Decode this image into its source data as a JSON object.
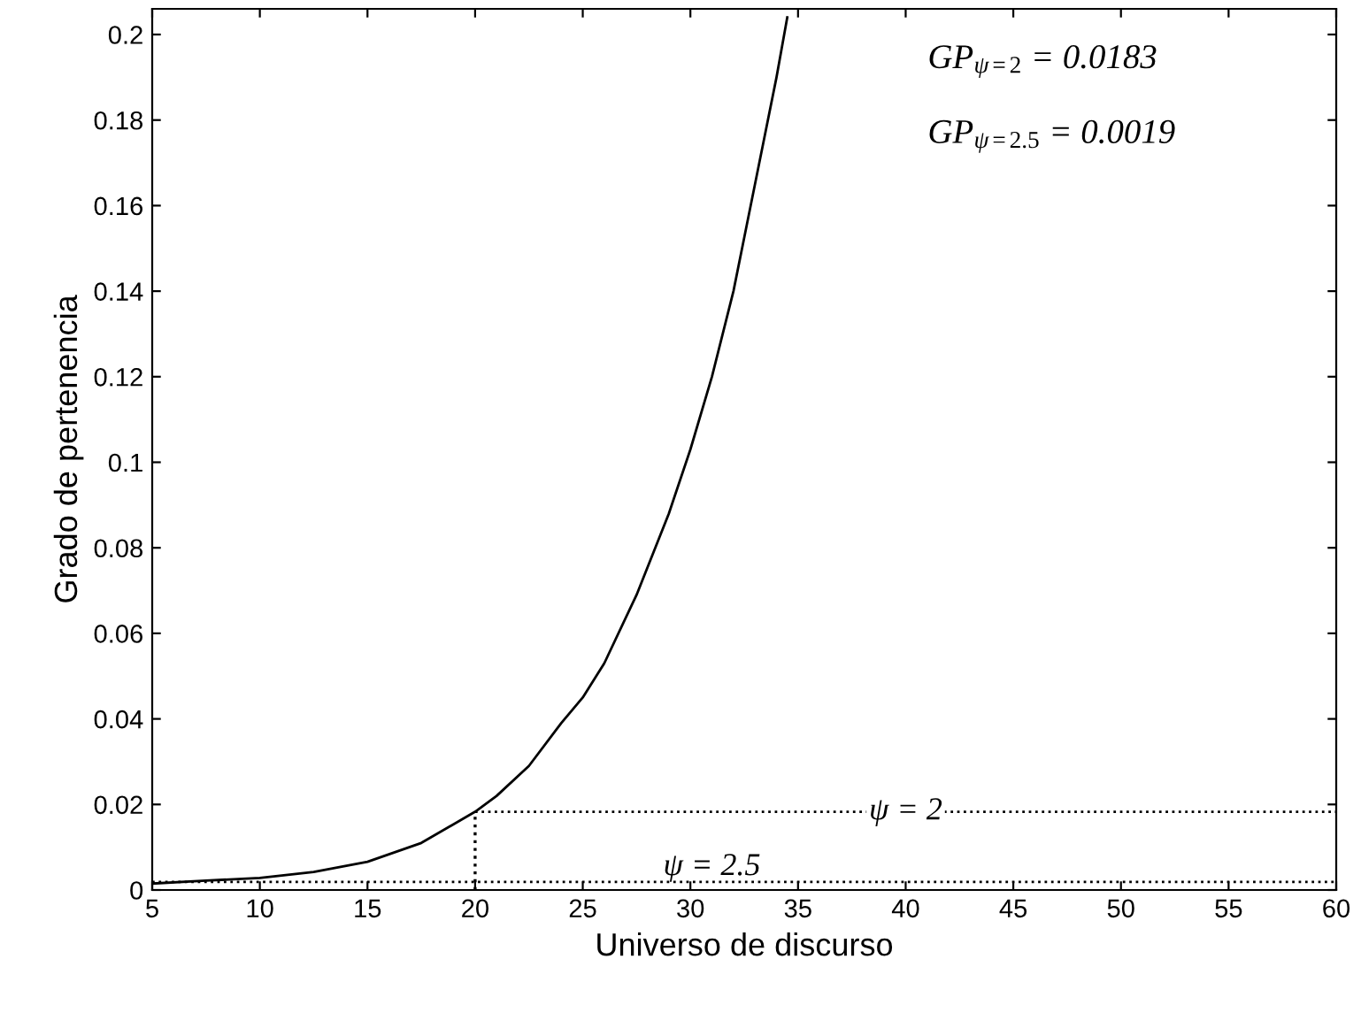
{
  "chart_data": {
    "type": "line",
    "xlabel": "Universo de discurso",
    "ylabel": "Grado de pertenencia",
    "x": [
      5,
      7.5,
      10,
      12.5,
      15,
      17.5,
      20,
      21,
      22.5,
      24,
      25,
      26,
      27.5,
      29,
      30,
      31,
      32,
      33,
      34,
      34.5
    ],
    "series": [
      {
        "color": "#000000",
        "values": [
          0.0015,
          0.0022,
          0.0028,
          0.0042,
          0.0066,
          0.011,
          0.0183,
          0.022,
          0.029,
          0.039,
          0.045,
          0.053,
          0.069,
          0.088,
          0.103,
          0.12,
          0.14,
          0.165,
          0.19,
          0.204
        ]
      }
    ],
    "xlim": [
      5,
      60
    ],
    "ylim": [
      0,
      0.206
    ],
    "xticks": [
      5,
      10,
      15,
      20,
      25,
      30,
      35,
      40,
      45,
      50,
      55,
      60
    ],
    "yticks": [
      0,
      0.02,
      0.04,
      0.06,
      0.08,
      0.1,
      0.12,
      0.14,
      0.16,
      0.18,
      0.2
    ],
    "ref_lines": [
      {
        "axis": "y",
        "value": 0.0183,
        "line_style": "dotted",
        "color": "#000000"
      },
      {
        "axis": "x",
        "value": 20,
        "line_style": "dotted",
        "color": "#000000"
      },
      {
        "axis": "y",
        "value": 0.0019,
        "line_style": "dotted",
        "color": "#000000"
      }
    ],
    "annotations": [
      "GP$_{ψ=2}$ = 0.0183",
      "GP$_{ψ=2.5}$ = 0.0019",
      {
        "text": "ψ = 2",
        "x": 40,
        "y": 0.0183
      },
      {
        "text": "ψ = 2.5",
        "x": 31,
        "y": 0.0019
      }
    ],
    "grid": false,
    "legend": false,
    "marker": "none",
    "line_style": "solid"
  }
}
